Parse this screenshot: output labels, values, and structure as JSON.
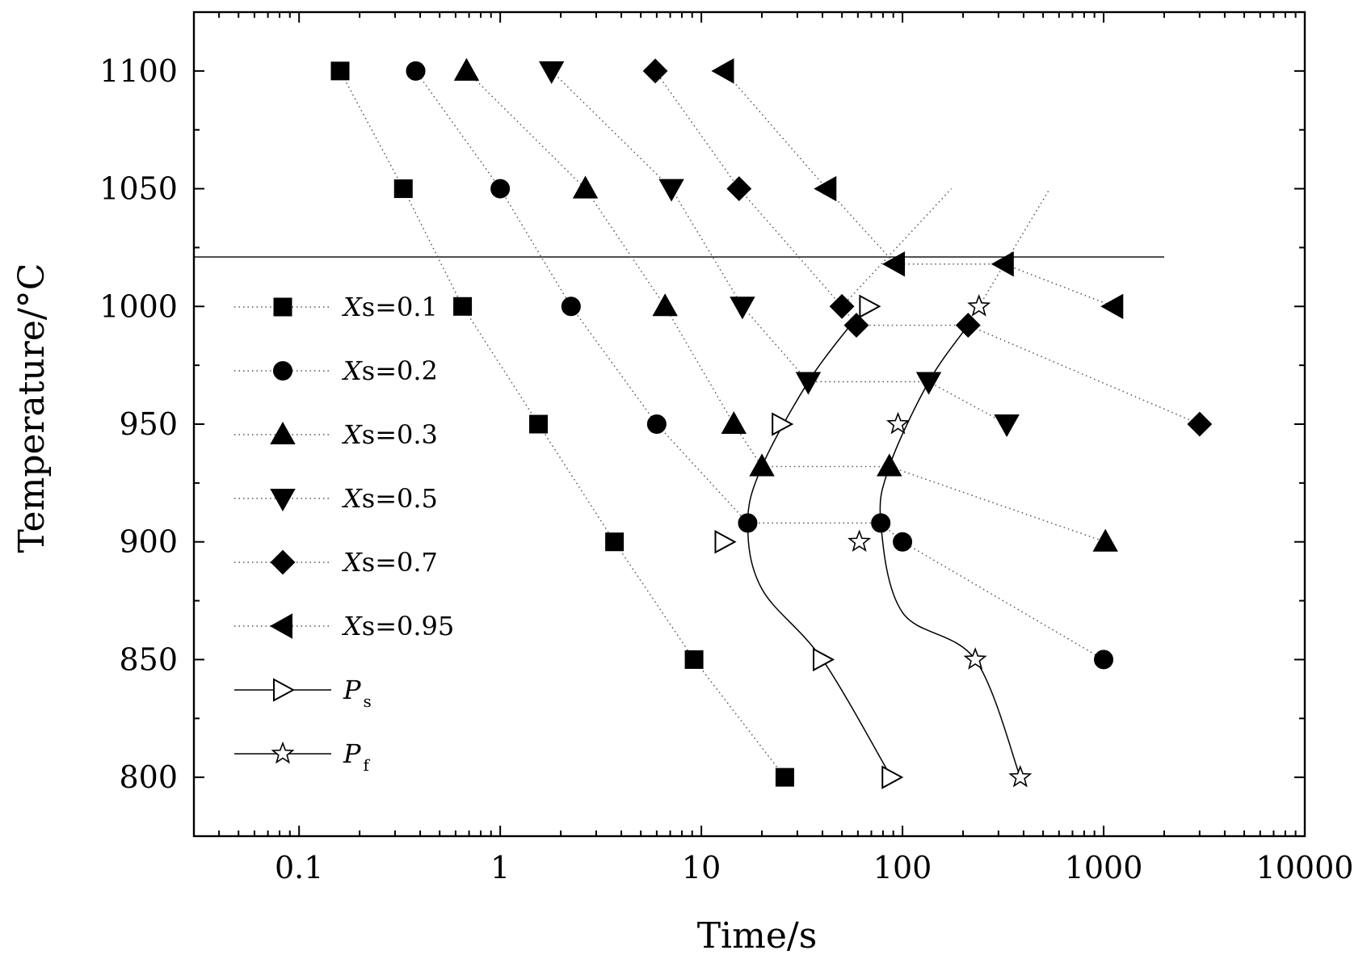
{
  "chart_data": {
    "type": "scatter",
    "title": "",
    "xlabel": "Time/s",
    "ylabel": "Temperature/°C",
    "xscale": "log",
    "xlim": [
      0.03,
      10000
    ],
    "ylim": [
      775,
      1125
    ],
    "x_ticks": [
      0.1,
      1,
      10,
      100,
      1000,
      10000
    ],
    "x_tick_labels": [
      "0.1",
      "1",
      "10",
      "100",
      "1000",
      "10000"
    ],
    "y_ticks": [
      800,
      850,
      900,
      950,
      1000,
      1050,
      1100
    ],
    "y_tick_labels": [
      "800",
      "850",
      "900",
      "950",
      "1000",
      "1050",
      "1100"
    ],
    "reference_line": {
      "y": 1021,
      "x_from": 0.03,
      "x_to": 2000
    },
    "legend_position": "left",
    "series": [
      {
        "name": "Xs=0.1",
        "legend_prefix": "X",
        "legend_suffix": "s=0.1",
        "marker": "square",
        "line": "dotted",
        "points": [
          [
            0.16,
            1100
          ],
          [
            0.33,
            1050
          ],
          [
            0.65,
            1000
          ],
          [
            1.55,
            950
          ],
          [
            3.7,
            900
          ],
          [
            9.2,
            850
          ],
          [
            26,
            800
          ]
        ]
      },
      {
        "name": "Xs=0.2",
        "legend_prefix": "X",
        "legend_suffix": "s=0.2",
        "marker": "circle",
        "line": "dotted",
        "points": [
          [
            0.38,
            1100
          ],
          [
            1.0,
            1050
          ],
          [
            2.25,
            1000
          ],
          [
            6.0,
            950
          ],
          [
            17,
            908
          ],
          [
            78,
            908
          ],
          [
            100,
            900
          ],
          [
            1000,
            850
          ]
        ]
      },
      {
        "name": "Xs=0.3",
        "legend_prefix": "X",
        "legend_suffix": "s=0.3",
        "marker": "triangle-up",
        "line": "dotted",
        "points": [
          [
            0.68,
            1100
          ],
          [
            2.65,
            1050
          ],
          [
            6.6,
            1000
          ],
          [
            14.5,
            950
          ],
          [
            20,
            932
          ],
          [
            86,
            932
          ],
          [
            1020,
            900
          ]
        ]
      },
      {
        "name": "Xs=0.5",
        "legend_prefix": "X",
        "legend_suffix": "s=0.5",
        "marker": "triangle-down",
        "line": "dotted",
        "points": [
          [
            1.8,
            1100
          ],
          [
            7.1,
            1050
          ],
          [
            16,
            1000
          ],
          [
            34,
            968
          ],
          [
            135,
            968
          ],
          [
            330,
            950
          ]
        ]
      },
      {
        "name": "Xs=0.7",
        "legend_prefix": "X",
        "legend_suffix": "s=0.7",
        "marker": "diamond",
        "line": "dotted",
        "points": [
          [
            5.9,
            1100
          ],
          [
            15.4,
            1050
          ],
          [
            50,
            1000
          ],
          [
            59,
            992
          ],
          [
            212,
            992
          ],
          [
            3000,
            950
          ]
        ]
      },
      {
        "name": "Xs=0.95",
        "legend_prefix": "X",
        "legend_suffix": "s=0.95",
        "marker": "triangle-left",
        "line": "dotted",
        "points": [
          [
            13,
            1100
          ],
          [
            42,
            1050
          ],
          [
            92,
            1018
          ],
          [
            320,
            1018
          ],
          [
            1120,
            1000
          ]
        ]
      },
      {
        "name": "Ps",
        "legend_prefix": "P",
        "legend_suffix": "s",
        "marker": "triangle-right-open",
        "line": "solid",
        "points": [
          [
            68,
            1000
          ],
          [
            25,
            950
          ],
          [
            13,
            900
          ],
          [
            40,
            850
          ],
          [
            88,
            800
          ]
        ]
      },
      {
        "name": "Pf",
        "legend_prefix": "P",
        "legend_suffix": "f",
        "marker": "star-open",
        "line": "solid",
        "points": [
          [
            240,
            1000
          ],
          [
            95,
            950
          ],
          [
            61,
            900
          ],
          [
            230,
            850
          ],
          [
            385,
            800
          ]
        ]
      }
    ],
    "dotted_guides": [
      {
        "points": [
          [
            50,
            1000
          ],
          [
            175,
            1050
          ]
        ]
      },
      {
        "points": [
          [
            240,
            1000
          ],
          [
            540,
            1050
          ]
        ]
      }
    ],
    "curves": [
      {
        "name": "Ps curve",
        "points": [
          [
            55,
            992
          ],
          [
            34,
            968
          ],
          [
            20,
            932
          ],
          [
            17,
            908
          ],
          [
            20,
            880
          ],
          [
            40,
            850
          ],
          [
            88,
            800
          ]
        ]
      },
      {
        "name": "Pf curve",
        "points": [
          [
            212,
            992
          ],
          [
            135,
            968
          ],
          [
            86,
            932
          ],
          [
            78,
            908
          ],
          [
            100,
            870
          ],
          [
            230,
            850
          ],
          [
            385,
            800
          ]
        ]
      }
    ]
  }
}
